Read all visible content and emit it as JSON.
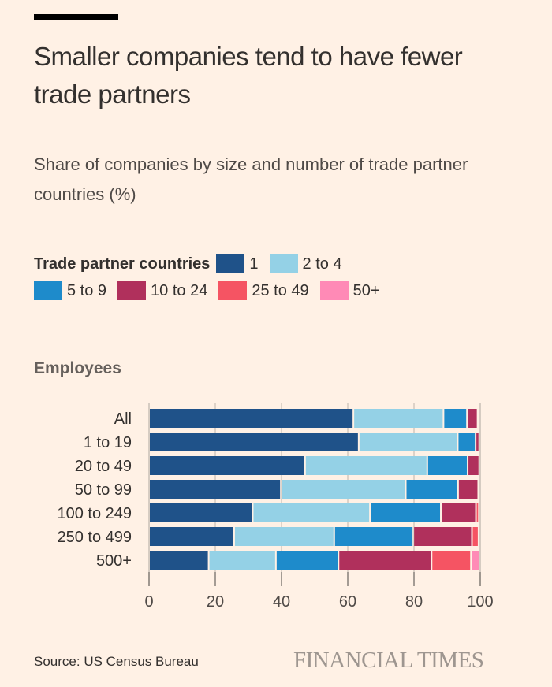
{
  "header": {
    "title": "Smaller companies tend to have fewer trade partners",
    "subtitle": "Share of companies by size and number of trade partner countries (%)"
  },
  "legend": {
    "title": "Trade partner countries",
    "items": [
      {
        "label": "1",
        "color": "#1f5289"
      },
      {
        "label": "2 to 4",
        "color": "#94d1e6"
      },
      {
        "label": "5 to 9",
        "color": "#1e8bcb"
      },
      {
        "label": "10 to 24",
        "color": "#b0305c"
      },
      {
        "label": "25 to 49",
        "color": "#f55463"
      },
      {
        "label": "50+",
        "color": "#ff8ab6"
      }
    ]
  },
  "employees_label": "Employees",
  "footer": {
    "source_prefix": "Source: ",
    "source_link": "US Census Bureau",
    "brand": "FINANCIAL TIMES"
  },
  "chart_data": {
    "type": "bar",
    "orientation": "horizontal",
    "stacked": true,
    "title": "Smaller companies tend to have fewer trade partners",
    "subtitle": "Share of companies by size and number of trade partner countries (%)",
    "xlabel": "",
    "ylabel": "Employees",
    "xlim": [
      0,
      100
    ],
    "xticks": [
      0,
      20,
      40,
      60,
      80,
      100
    ],
    "grid": true,
    "legend_position": "top",
    "categories": [
      "All",
      "1 to 19",
      "20 to 49",
      "50 to 99",
      "100 to 249",
      "250 to 499",
      "500+"
    ],
    "series": [
      {
        "name": "1",
        "color": "#1f5289",
        "values": [
          61.7,
          63.3,
          47.1,
          39.8,
          31.3,
          25.7,
          18.0
        ]
      },
      {
        "name": "2 to 4",
        "color": "#94d1e6",
        "values": [
          27.2,
          29.9,
          36.9,
          37.7,
          35.4,
          30.2,
          20.3
        ]
      },
      {
        "name": "5 to 9",
        "color": "#1e8bcb",
        "values": [
          7.1,
          5.4,
          12.2,
          15.8,
          21.4,
          23.9,
          18.9
        ]
      },
      {
        "name": "10 to 24",
        "color": "#b0305c",
        "values": [
          3.2,
          1.1,
          3.5,
          6.1,
          10.6,
          17.7,
          28.1
        ]
      },
      {
        "name": "25 to 49",
        "color": "#f55463",
        "values": [
          0.5,
          0.2,
          0.2,
          0.4,
          0.9,
          2.0,
          11.9
        ]
      },
      {
        "name": "50+",
        "color": "#ff8ab6",
        "values": [
          0.3,
          0.1,
          0.1,
          0.2,
          0.4,
          0.5,
          2.8
        ]
      }
    ]
  }
}
